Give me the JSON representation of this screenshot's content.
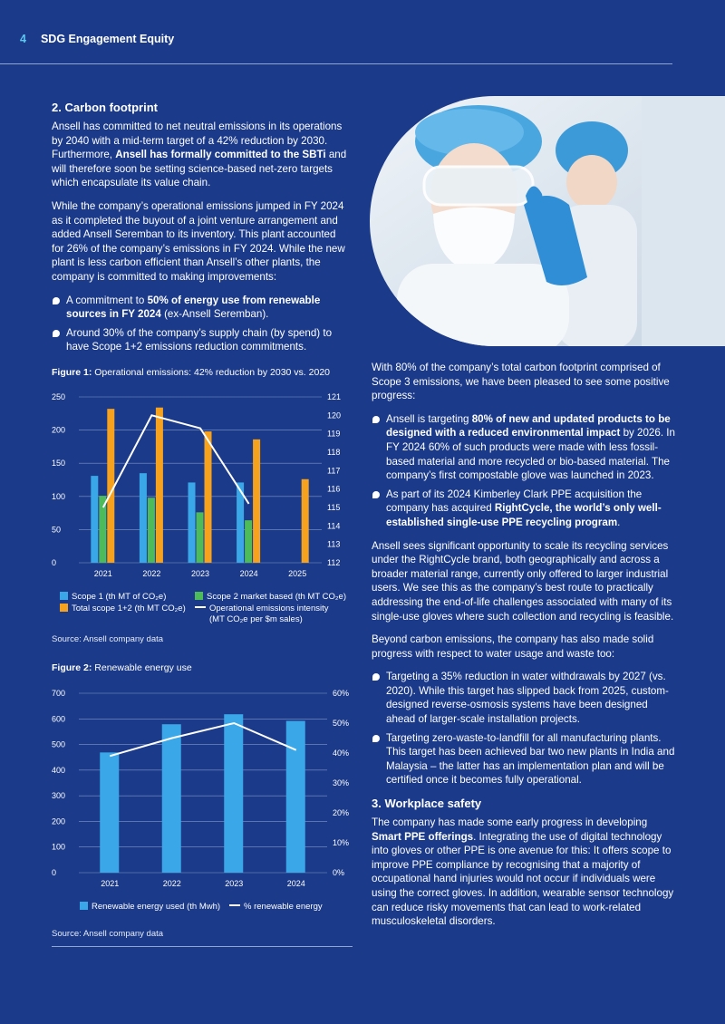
{
  "header": {
    "page_number": "4",
    "title": "SDG Engagement Equity"
  },
  "section2": {
    "heading": "2. Carbon footprint",
    "p1_a": "Ansell has committed to net neutral emissions in its operations by 2040 with a mid-term target of a 42% reduction by 2030. Furthermore, ",
    "p1_b": "Ansell has formally committed to the SBTi",
    "p1_c": " and will therefore soon be setting science-based net-zero targets which encapsulate its value chain.",
    "p2": "While the company’s operational emissions jumped in FY 2024 as it completed the buyout of a joint venture arrangement and added Ansell Seremban to its inventory. This plant accounted for 26% of the company’s emissions in FY 2024. While the new plant is less carbon efficient than Ansell’s other plants, the company is committed to making improvements:",
    "b1_a": "A commitment to ",
    "b1_b": "50% of energy use from renewable sources in FY 2024",
    "b1_c": " (ex-Ansell Seremban).",
    "b2": "Around 30% of the company’s supply chain (by spend) to have Scope 1+2 emissions reduction commitments."
  },
  "figure1": {
    "label": "Figure 1:",
    "title": "Operational emissions: 42% reduction by 2030 vs. 2020",
    "legend": {
      "s1": "Scope 1 (th MT of CO₂e)",
      "s2": "Scope 2 market based (th MT CO₂e)",
      "s3": "Total scope 1+2 (th MT CO₂e)",
      "s4a": "Operational emissions intensity",
      "s4b": "(MT CO₂e per $m sales)"
    },
    "source": "Source: Ansell company data"
  },
  "figure2": {
    "label": "Figure 2:",
    "title": "Renewable energy use",
    "legend": {
      "s1": "Renewable energy used (th Mwh)",
      "s2": "% renewable energy"
    },
    "source": "Source: Ansell company data"
  },
  "right": {
    "p1": "With 80% of the company’s total carbon footprint comprised of Scope 3 emissions, we have been pleased to see some positive progress:",
    "b1_a": "Ansell is targeting ",
    "b1_b": "80% of new and updated products to be designed with a reduced environmental impact",
    "b1_c": " by 2026. In FY 2024 60% of such products were made with less fossil-based material and more recycled or bio-based material. The company’s first compostable glove was launched in 2023.",
    "b2_a": "As part of its 2024 Kimberley Clark PPE acquisition the company has acquired ",
    "b2_b": "RightCycle, the world’s only well-established single-use PPE recycling program",
    "b2_c": ".",
    "p2": "Ansell sees significant opportunity to scale its recycling services under the RightCycle brand, both geographically and across a broader material range, currently only offered to larger industrial users. We see this as the company’s best route to practically addressing the end-of-life challenges associated with many of its single-use gloves where such collection and recycling is feasible.",
    "p3": "Beyond carbon emissions, the company has also made solid progress with respect to water usage and waste too:",
    "b3": "Targeting a 35% reduction in water withdrawals by 2027 (vs. 2020). While this target has slipped back from 2025, custom-designed reverse-osmosis systems have been designed ahead of larger-scale installation projects.",
    "b4": "Targeting zero-waste-to-landfill for all manufacturing plants. This target has been achieved bar two new plants in India and Malaysia – the latter has an implementation plan and will be certified once it becomes fully operational.",
    "heading3": "3. Workplace safety",
    "p4_a": "The company has made some early progress in developing ",
    "p4_b": "Smart PPE offerings",
    "p4_c": ". Integrating the use of digital technology into gloves or other PPE is one avenue for this: It offers scope to improve PPE compliance by recognising that a majority of occupational hand injuries would not occur if individuals were using the correct gloves. In addition, wearable sensor technology can reduce risky movements that can lead to work-related musculoskeletal disorders."
  },
  "colors": {
    "background": "#1b3a8a",
    "scope1": "#3aa8e8",
    "scope2": "#4dbb5a",
    "total": "#f6a21e",
    "line": "#ffffff"
  },
  "chart_data": [
    {
      "type": "bar",
      "categories": [
        "2021",
        "2022",
        "2023",
        "2024",
        "2025"
      ],
      "series": [
        {
          "name": "Scope 1 (th MT of CO₂e)",
          "axis": "left",
          "values": [
            131,
            135,
            121,
            121,
            null
          ]
        },
        {
          "name": "Scope 2 market based (th MT CO₂e)",
          "axis": "left",
          "values": [
            101,
            98,
            76,
            64,
            null
          ]
        },
        {
          "name": "Total scope 1+2 (th MT CO₂e)",
          "axis": "left",
          "values": [
            232,
            234,
            198,
            186,
            126
          ]
        },
        {
          "name": "Operational emissions intensity (MT CO₂e per $m sales)",
          "axis": "right",
          "type": "line",
          "values": [
            115,
            120,
            119.3,
            115.2,
            null
          ]
        }
      ],
      "ylim": [
        0,
        250
      ],
      "yticks": [
        "0",
        "50",
        "100",
        "150",
        "200",
        "250"
      ],
      "y2lim": [
        112,
        121
      ],
      "y2ticks": [
        "112",
        "113",
        "114",
        "115",
        "116",
        "117",
        "118",
        "119",
        "120",
        "121"
      ]
    },
    {
      "type": "bar",
      "categories": [
        "2021",
        "2022",
        "2023",
        "2024"
      ],
      "series": [
        {
          "name": "Renewable energy used (th Mwh)",
          "axis": "left",
          "values": [
            469,
            579,
            618,
            592
          ]
        },
        {
          "name": "% renewable energy",
          "axis": "right",
          "type": "line",
          "values": [
            39,
            45,
            50,
            41
          ]
        }
      ],
      "ylim": [
        0,
        700
      ],
      "yticks": [
        "0",
        "100",
        "200",
        "300",
        "400",
        "500",
        "600",
        "700"
      ],
      "y2lim": [
        0,
        60
      ],
      "y2ticks": [
        "0%",
        "10%",
        "20%",
        "30%",
        "40%",
        "50%",
        "60%"
      ]
    }
  ]
}
